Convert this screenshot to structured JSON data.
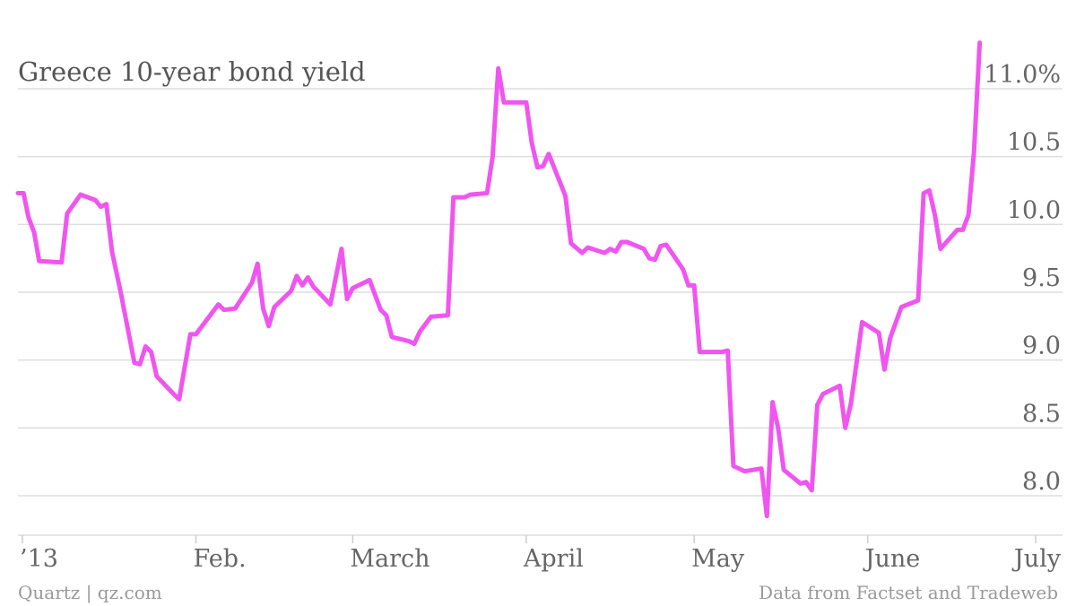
{
  "chart_data": {
    "type": "line",
    "title": "Greece 10-year bond yield",
    "source_left": "Quartz | qz.com",
    "source_right": "Data from Factset and Tradeweb",
    "color": "#f055f0",
    "grid": true,
    "xlim": [
      0,
      181
    ],
    "xticks": [
      {
        "value": 0,
        "label": "’13"
      },
      {
        "value": 31,
        "label": "Feb."
      },
      {
        "value": 59,
        "label": "March"
      },
      {
        "value": 90,
        "label": "April"
      },
      {
        "value": 120,
        "label": "May"
      },
      {
        "value": 151,
        "label": "June"
      },
      {
        "value": 181,
        "label": "July"
      }
    ],
    "ylim": [
      7.75,
      11.4
    ],
    "yticks": [
      {
        "value": 8,
        "label": "8.0"
      },
      {
        "value": 8.5,
        "label": "8.5"
      },
      {
        "value": 9,
        "label": "9.0"
      },
      {
        "value": 9.5,
        "label": "9.5"
      },
      {
        "value": 10,
        "label": "10.0"
      },
      {
        "value": 10.5,
        "label": "10.5"
      },
      {
        "value": 11,
        "label": "11.0%"
      }
    ],
    "x": [
      -0.8,
      0.2,
      1.1,
      2.1,
      3,
      7,
      8,
      10.4,
      13,
      14,
      15,
      16,
      17.5,
      20,
      21,
      22,
      23,
      24,
      27,
      28,
      30,
      31,
      35,
      36,
      38,
      41,
      42,
      43,
      44,
      45,
      48,
      49,
      50,
      51,
      52,
      55,
      57,
      58,
      59,
      62,
      64,
      65,
      66,
      69,
      70,
      71,
      73,
      76,
      77,
      79,
      80,
      83,
      84,
      85,
      86,
      90,
      91,
      92,
      93,
      94,
      97,
      98,
      100,
      101,
      104,
      105,
      106,
      107,
      108,
      111,
      112,
      113,
      114,
      115,
      118,
      119,
      120,
      121,
      124,
      125,
      126,
      127,
      129,
      132,
      133,
      134,
      135,
      136,
      139,
      140,
      141,
      142,
      143,
      146,
      147,
      148,
      150,
      153,
      154,
      155,
      157,
      160,
      161,
      162,
      163,
      164,
      167,
      168,
      169,
      170,
      171
    ],
    "values": [
      10.23,
      10.23,
      10.05,
      9.94,
      9.73,
      9.72,
      10.08,
      10.22,
      10.18,
      10.13,
      10.15,
      9.8,
      9.51,
      8.98,
      8.97,
      9.1,
      9.06,
      8.88,
      8.75,
      8.71,
      9.19,
      9.19,
      9.41,
      9.37,
      9.38,
      9.57,
      9.71,
      9.38,
      9.25,
      9.39,
      9.51,
      9.62,
      9.55,
      9.61,
      9.54,
      9.41,
      9.82,
      9.45,
      9.53,
      9.59,
      9.37,
      9.33,
      9.17,
      9.14,
      9.12,
      9.21,
      9.32,
      9.33,
      10.2,
      10.2,
      10.22,
      10.23,
      10.5,
      11.15,
      10.9,
      10.9,
      10.6,
      10.42,
      10.43,
      10.52,
      10.21,
      9.86,
      9.79,
      9.83,
      9.79,
      9.82,
      9.8,
      9.87,
      9.87,
      9.82,
      9.75,
      9.74,
      9.84,
      9.85,
      9.67,
      9.55,
      9.55,
      9.06,
      9.06,
      9.06,
      9.07,
      8.22,
      8.18,
      8.2,
      7.85,
      8.69,
      8.5,
      8.19,
      8.09,
      8.1,
      8.04,
      8.67,
      8.75,
      8.81,
      8.5,
      8.68,
      9.28,
      9.2,
      8.93,
      9.16,
      9.39,
      9.44,
      10.23,
      10.25,
      10.07,
      9.82,
      9.96,
      9.96,
      10.07,
      10.54,
      11.34
    ]
  }
}
